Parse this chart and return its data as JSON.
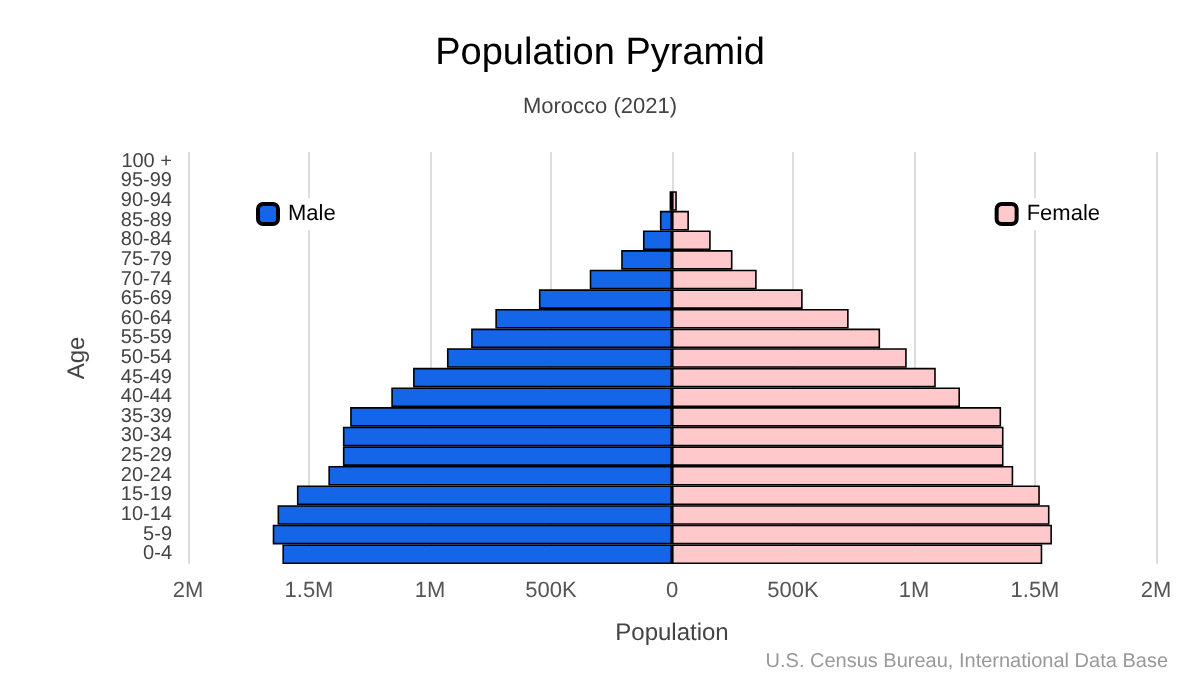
{
  "chart_data": {
    "type": "bar",
    "orientation": "horizontal",
    "stacked": true,
    "title": "Population Pyramid",
    "subtitle": "Morocco (2021)",
    "xlabel": "Population",
    "ylabel": "Age",
    "categories": [
      "100 +",
      "95-99",
      "90-94",
      "85-89",
      "80-84",
      "75-79",
      "70-74",
      "65-69",
      "60-64",
      "55-59",
      "50-54",
      "45-49",
      "40-44",
      "35-39",
      "30-34",
      "25-29",
      "20-24",
      "15-19",
      "10-14",
      "5-9",
      "0-4"
    ],
    "series": [
      {
        "name": "Male",
        "color": "#1565e8",
        "values": [
          0,
          0,
          -10000,
          -50000,
          -120000,
          -210000,
          -340000,
          -550000,
          -730000,
          -830000,
          -930000,
          -1070000,
          -1160000,
          -1330000,
          -1360000,
          -1360000,
          -1420000,
          -1550000,
          -1630000,
          -1650000,
          -1610000
        ]
      },
      {
        "name": "Female",
        "color": "#ffc9cc",
        "values": [
          0,
          0,
          20000,
          70000,
          160000,
          250000,
          350000,
          540000,
          730000,
          860000,
          970000,
          1090000,
          1190000,
          1360000,
          1370000,
          1370000,
          1410000,
          1520000,
          1560000,
          1570000,
          1530000
        ]
      }
    ],
    "xlim": [
      -2000000,
      2000000
    ],
    "xticks": [
      {
        "value": -2000000,
        "label": "2M"
      },
      {
        "value": -1500000,
        "label": "1.5M"
      },
      {
        "value": -1000000,
        "label": "1M"
      },
      {
        "value": -500000,
        "label": "500K"
      },
      0,
      {
        "value": 500000,
        "label": "500K"
      },
      {
        "value": 1000000,
        "label": "1M"
      },
      {
        "value": 1500000,
        "label": "1.5M"
      },
      {
        "value": 2000000,
        "label": "2M"
      }
    ],
    "grid": "x",
    "legend": "top",
    "annotations": [
      "U.S. Census Bureau, International Data Base"
    ]
  }
}
